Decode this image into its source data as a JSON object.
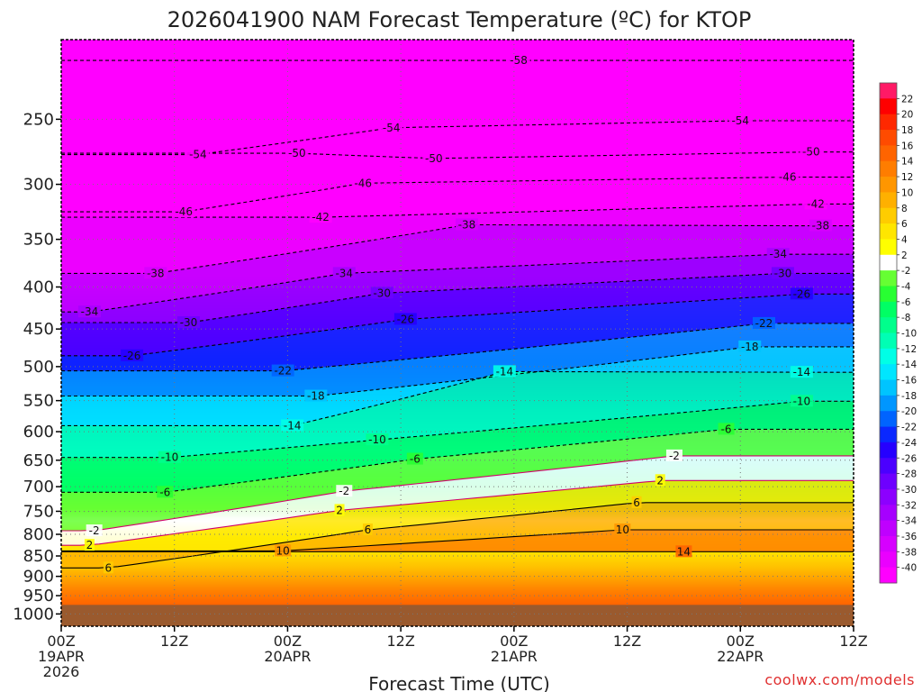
{
  "chart_data": {
    "type": "heatmap",
    "title": "2026041900 NAM Forecast Temperature (ºC) for KTOP",
    "xlabel": "Forecast Time (UTC)",
    "ylabel": "",
    "credit": "coolwx.com/models",
    "y_ticks": [
      250,
      300,
      350,
      400,
      450,
      500,
      550,
      600,
      650,
      700,
      750,
      800,
      850,
      900,
      950,
      1000
    ],
    "y_scale": "log-pressure, inverted",
    "ylim": [
      1035,
      200
    ],
    "x_ticks": [
      {
        "hour": 0,
        "lines": [
          "00Z",
          "19APR",
          "2026"
        ]
      },
      {
        "hour": 12,
        "lines": [
          "12Z"
        ]
      },
      {
        "hour": 24,
        "lines": [
          "00Z",
          "20APR"
        ]
      },
      {
        "hour": 36,
        "lines": [
          "12Z"
        ]
      },
      {
        "hour": 48,
        "lines": [
          "00Z",
          "21APR"
        ]
      },
      {
        "hour": 60,
        "lines": [
          "12Z"
        ]
      },
      {
        "hour": 72,
        "lines": [
          "00Z",
          "22APR"
        ]
      },
      {
        "hour": 84,
        "lines": [
          "12Z"
        ]
      }
    ],
    "xlim": [
      0,
      84
    ],
    "grid": "dotted at each x and y tick",
    "ground_below_hpa": 975,
    "colorbar": {
      "levels": [
        -40,
        -38,
        -36,
        -34,
        -32,
        -30,
        -28,
        -26,
        -24,
        -22,
        -20,
        -18,
        -16,
        -14,
        -12,
        -10,
        -8,
        -6,
        -4,
        -2,
        2,
        4,
        6,
        8,
        10,
        12,
        14,
        16,
        18,
        20,
        22
      ],
      "colors": [
        "#ff00ff",
        "#ea00ff",
        "#d600ff",
        "#bf00ff",
        "#a600ff",
        "#8c00ff",
        "#6e00ff",
        "#4b00ff",
        "#2600ff",
        "#0a28ff",
        "#0064ff",
        "#0096ff",
        "#00c4ff",
        "#00e6ff",
        "#00ffe6",
        "#00ffb4",
        "#00ff8c",
        "#00ff64",
        "#28ff32",
        "#66ff33",
        "#ffffff",
        "#ffff00",
        "#ffe600",
        "#ffcc00",
        "#ffb000",
        "#ff9600",
        "#ff7d00",
        "#ff6400",
        "#ff4b00",
        "#ff2800",
        "#ff0000",
        "#ff1a66"
      ]
    },
    "contour_labels": [
      {
        "value": -58,
        "hour": 48.5,
        "hpa": 212
      },
      {
        "value": -54,
        "hour": 14.5,
        "hpa": 276
      },
      {
        "value": -54,
        "hour": 35.0,
        "hpa": 256
      },
      {
        "value": -54,
        "hour": 72.0,
        "hpa": 251
      },
      {
        "value": -50,
        "hour": 25.0,
        "hpa": 275
      },
      {
        "value": -50,
        "hour": 39.5,
        "hpa": 279
      },
      {
        "value": -50,
        "hour": 79.5,
        "hpa": 274
      },
      {
        "value": -46,
        "hour": 13.0,
        "hpa": 324
      },
      {
        "value": -46,
        "hour": 32.0,
        "hpa": 299
      },
      {
        "value": -46,
        "hour": 77.0,
        "hpa": 294
      },
      {
        "value": -42,
        "hour": 27.5,
        "hpa": 329
      },
      {
        "value": -42,
        "hour": 80.0,
        "hpa": 317
      },
      {
        "value": -38,
        "hour": 10.0,
        "hpa": 385
      },
      {
        "value": -38,
        "hour": 43.0,
        "hpa": 336
      },
      {
        "value": -38,
        "hour": 80.5,
        "hpa": 337
      },
      {
        "value": -34,
        "hour": 3.0,
        "hpa": 429
      },
      {
        "value": -34,
        "hour": 30.0,
        "hpa": 385
      },
      {
        "value": -34,
        "hour": 76.0,
        "hpa": 365
      },
      {
        "value": -30,
        "hour": 13.5,
        "hpa": 442
      },
      {
        "value": -30,
        "hour": 34.0,
        "hpa": 407
      },
      {
        "value": -30,
        "hour": 76.5,
        "hpa": 385
      },
      {
        "value": -26,
        "hour": 7.5,
        "hpa": 485
      },
      {
        "value": -26,
        "hour": 36.5,
        "hpa": 438
      },
      {
        "value": -26,
        "hour": 78.5,
        "hpa": 408
      },
      {
        "value": -22,
        "hour": 23.5,
        "hpa": 506
      },
      {
        "value": -22,
        "hour": 74.5,
        "hpa": 443
      },
      {
        "value": -18,
        "hour": 27.0,
        "hpa": 543
      },
      {
        "value": -18,
        "hour": 73.0,
        "hpa": 473
      },
      {
        "value": -14,
        "hour": 24.5,
        "hpa": 590
      },
      {
        "value": -14,
        "hour": 47.0,
        "hpa": 507
      },
      {
        "value": -14,
        "hour": 78.5,
        "hpa": 508
      },
      {
        "value": -10,
        "hour": 11.5,
        "hpa": 645
      },
      {
        "value": -10,
        "hour": 33.5,
        "hpa": 614
      },
      {
        "value": -10,
        "hour": 78.5,
        "hpa": 551
      },
      {
        "value": -6,
        "hour": 11.0,
        "hpa": 711
      },
      {
        "value": -6,
        "hour": 37.5,
        "hpa": 648
      },
      {
        "value": -6,
        "hour": 70.5,
        "hpa": 596
      },
      {
        "value": -2,
        "hour": 3.5,
        "hpa": 792
      },
      {
        "value": -2,
        "hour": 30.0,
        "hpa": 709
      },
      {
        "value": -2,
        "hour": 65.0,
        "hpa": 642
      },
      {
        "value": 2,
        "hour": 3.0,
        "hpa": 825
      },
      {
        "value": 2,
        "hour": 29.5,
        "hpa": 748
      },
      {
        "value": 2,
        "hour": 63.5,
        "hpa": 688
      },
      {
        "value": 6,
        "hour": 5.0,
        "hpa": 879
      },
      {
        "value": 6,
        "hour": 32.5,
        "hpa": 790
      },
      {
        "value": 6,
        "hour": 61.0,
        "hpa": 732
      },
      {
        "value": 10,
        "hour": 23.5,
        "hpa": 838
      },
      {
        "value": 10,
        "hour": 59.5,
        "hpa": 790
      },
      {
        "value": 14,
        "hour": 66.0,
        "hpa": 840
      }
    ]
  }
}
